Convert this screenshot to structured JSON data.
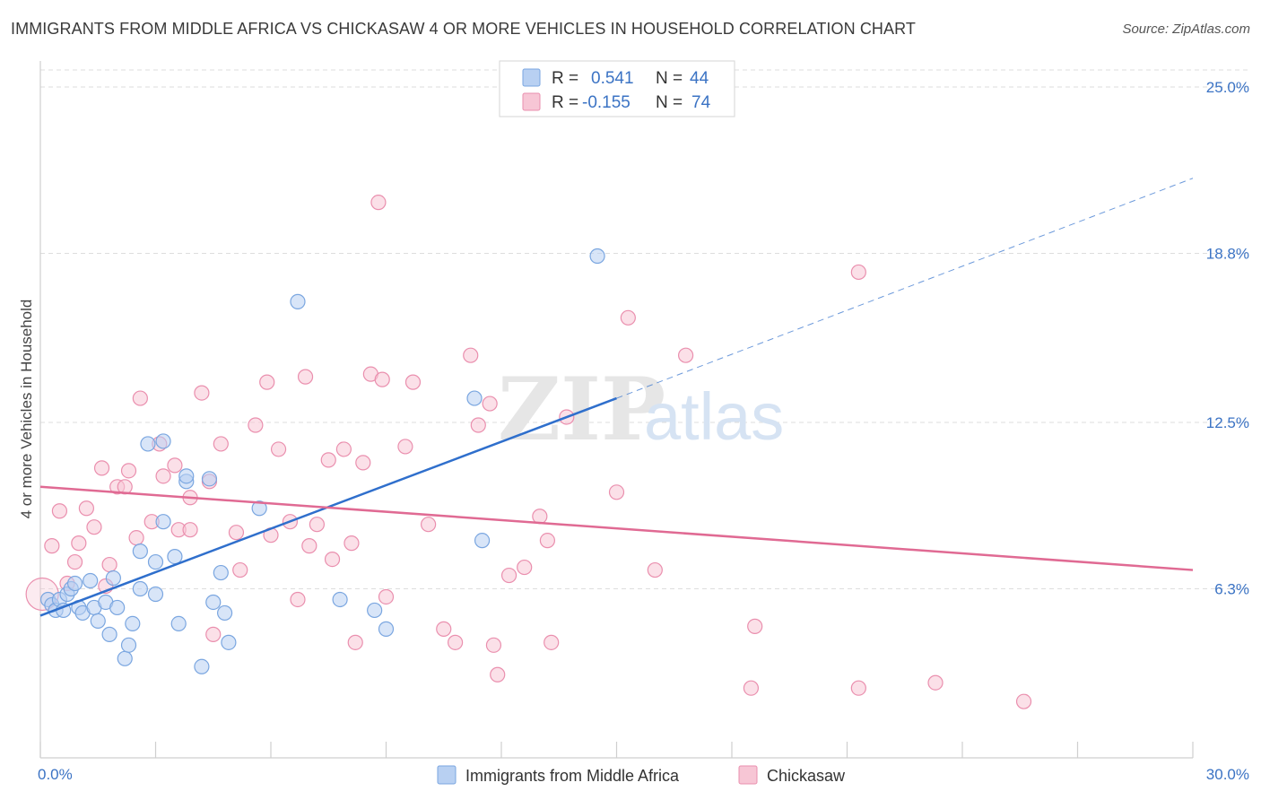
{
  "title": "IMMIGRANTS FROM MIDDLE AFRICA VS CHICKASAW 4 OR MORE VEHICLES IN HOUSEHOLD CORRELATION CHART",
  "source": "Source: ZipAtlas.com",
  "watermark": {
    "zip": "ZIP",
    "atlas": "atlas"
  },
  "colors": {
    "blue_fill": "#b8d0f2",
    "blue_stroke": "#7aa6e0",
    "blue_line": "#2f6fcc",
    "pink_fill": "#f7c6d5",
    "pink_stroke": "#ea8fae",
    "pink_line": "#e06a93",
    "grid": "#dddddd",
    "tick_text": "#3b73c4"
  },
  "legend": {
    "rows": [
      {
        "r_label": "R =",
        "r_value": "0.541",
        "n_label": "N =",
        "n_value": "44",
        "series": "blue"
      },
      {
        "r_label": "R =",
        "r_value": "-0.155",
        "n_label": "N =",
        "n_value": "74",
        "series": "pink"
      }
    ]
  },
  "bottom_legend": [
    {
      "label": "Immigrants from Middle Africa",
      "series": "blue"
    },
    {
      "label": "Chickasaw",
      "series": "pink"
    }
  ],
  "chart_data": {
    "type": "scatter",
    "title": "IMMIGRANTS FROM MIDDLE AFRICA VS CHICKASAW 4 OR MORE VEHICLES IN HOUSEHOLD CORRELATION CHART",
    "xlabel": "",
    "ylabel": "4 or more Vehicles in Household",
    "xlim": [
      0,
      30
    ],
    "ylim": [
      0,
      25
    ],
    "x_tick_labels": [
      {
        "value": 0,
        "label": "0.0%"
      },
      {
        "value": 30,
        "label": "30.0%"
      }
    ],
    "y_tick_labels": [
      {
        "value": 6.3,
        "label": "6.3%"
      },
      {
        "value": 12.5,
        "label": "12.5%"
      },
      {
        "value": 18.8,
        "label": "18.8%"
      },
      {
        "value": 25.0,
        "label": "25.0%"
      }
    ],
    "grid": "horizontal dashed",
    "legend_position": "top-center",
    "series": [
      {
        "name": "Immigrants from Middle Africa",
        "color": "blue",
        "trend": {
          "x": [
            0,
            15
          ],
          "y": [
            5.3,
            13.4
          ],
          "extension": {
            "x": [
              15,
              30
            ],
            "y": [
              13.4,
              21.6
            ]
          }
        },
        "points": [
          {
            "x": 0.2,
            "y": 5.9
          },
          {
            "x": 0.3,
            "y": 5.7
          },
          {
            "x": 0.4,
            "y": 5.5
          },
          {
            "x": 0.5,
            "y": 5.9
          },
          {
            "x": 0.6,
            "y": 5.5
          },
          {
            "x": 0.7,
            "y": 6.1
          },
          {
            "x": 0.8,
            "y": 6.3
          },
          {
            "x": 0.9,
            "y": 6.5
          },
          {
            "x": 1.0,
            "y": 5.6
          },
          {
            "x": 1.1,
            "y": 5.4
          },
          {
            "x": 1.3,
            "y": 6.6
          },
          {
            "x": 1.4,
            "y": 5.6
          },
          {
            "x": 1.5,
            "y": 5.1
          },
          {
            "x": 1.7,
            "y": 5.8
          },
          {
            "x": 1.8,
            "y": 4.6
          },
          {
            "x": 1.9,
            "y": 6.7
          },
          {
            "x": 2.0,
            "y": 5.6
          },
          {
            "x": 2.2,
            "y": 3.7
          },
          {
            "x": 2.3,
            "y": 4.2
          },
          {
            "x": 2.4,
            "y": 5.0
          },
          {
            "x": 2.6,
            "y": 6.3
          },
          {
            "x": 2.6,
            "y": 7.7
          },
          {
            "x": 2.8,
            "y": 11.7
          },
          {
            "x": 3.0,
            "y": 7.3
          },
          {
            "x": 3.0,
            "y": 6.1
          },
          {
            "x": 3.2,
            "y": 8.8
          },
          {
            "x": 3.2,
            "y": 11.8
          },
          {
            "x": 3.5,
            "y": 7.5
          },
          {
            "x": 3.6,
            "y": 5.0
          },
          {
            "x": 3.8,
            "y": 10.3
          },
          {
            "x": 3.8,
            "y": 10.5
          },
          {
            "x": 4.4,
            "y": 10.4
          },
          {
            "x": 4.2,
            "y": 3.4
          },
          {
            "x": 4.5,
            "y": 5.8
          },
          {
            "x": 4.7,
            "y": 6.9
          },
          {
            "x": 4.8,
            "y": 5.4
          },
          {
            "x": 4.9,
            "y": 4.3
          },
          {
            "x": 5.7,
            "y": 9.3
          },
          {
            "x": 6.7,
            "y": 17.0
          },
          {
            "x": 7.8,
            "y": 5.9
          },
          {
            "x": 8.7,
            "y": 5.5
          },
          {
            "x": 9.0,
            "y": 4.8
          },
          {
            "x": 11.3,
            "y": 13.4
          },
          {
            "x": 11.5,
            "y": 8.1
          },
          {
            "x": 14.5,
            "y": 18.7
          }
        ]
      },
      {
        "name": "Chickasaw",
        "color": "pink",
        "trend": {
          "x": [
            0,
            30
          ],
          "y": [
            10.1,
            7.0
          ]
        },
        "points": [
          {
            "x": 0.05,
            "y": 6.1,
            "big": true
          },
          {
            "x": 0.3,
            "y": 7.9
          },
          {
            "x": 0.5,
            "y": 9.2
          },
          {
            "x": 0.7,
            "y": 6.5
          },
          {
            "x": 0.9,
            "y": 7.3
          },
          {
            "x": 1.0,
            "y": 8.0
          },
          {
            "x": 1.2,
            "y": 9.3
          },
          {
            "x": 1.4,
            "y": 8.6
          },
          {
            "x": 1.6,
            "y": 10.8
          },
          {
            "x": 1.7,
            "y": 6.4
          },
          {
            "x": 1.8,
            "y": 7.2
          },
          {
            "x": 2.0,
            "y": 10.1
          },
          {
            "x": 2.2,
            "y": 10.1
          },
          {
            "x": 2.3,
            "y": 10.7
          },
          {
            "x": 2.5,
            "y": 8.2
          },
          {
            "x": 2.6,
            "y": 13.4
          },
          {
            "x": 2.9,
            "y": 8.8
          },
          {
            "x": 3.1,
            "y": 11.7
          },
          {
            "x": 3.2,
            "y": 10.5
          },
          {
            "x": 3.5,
            "y": 10.9
          },
          {
            "x": 3.6,
            "y": 8.5
          },
          {
            "x": 3.9,
            "y": 8.5
          },
          {
            "x": 3.9,
            "y": 9.7
          },
          {
            "x": 4.2,
            "y": 13.6
          },
          {
            "x": 4.4,
            "y": 10.3
          },
          {
            "x": 4.5,
            "y": 4.6
          },
          {
            "x": 4.7,
            "y": 11.7
          },
          {
            "x": 5.1,
            "y": 8.4
          },
          {
            "x": 5.2,
            "y": 7.0
          },
          {
            "x": 5.6,
            "y": 12.4
          },
          {
            "x": 5.9,
            "y": 14.0
          },
          {
            "x": 6.0,
            "y": 8.3
          },
          {
            "x": 6.2,
            "y": 11.5
          },
          {
            "x": 6.5,
            "y": 8.8
          },
          {
            "x": 6.7,
            "y": 5.9
          },
          {
            "x": 6.9,
            "y": 14.2
          },
          {
            "x": 7.0,
            "y": 7.9
          },
          {
            "x": 7.2,
            "y": 8.7
          },
          {
            "x": 7.5,
            "y": 11.1
          },
          {
            "x": 7.6,
            "y": 7.4
          },
          {
            "x": 7.9,
            "y": 11.5
          },
          {
            "x": 8.1,
            "y": 8.0
          },
          {
            "x": 8.2,
            "y": 4.3
          },
          {
            "x": 8.4,
            "y": 11.0
          },
          {
            "x": 8.6,
            "y": 14.3
          },
          {
            "x": 8.8,
            "y": 20.7
          },
          {
            "x": 8.9,
            "y": 14.1
          },
          {
            "x": 9.0,
            "y": 6.0
          },
          {
            "x": 9.5,
            "y": 11.6
          },
          {
            "x": 9.7,
            "y": 14.0
          },
          {
            "x": 10.1,
            "y": 8.7
          },
          {
            "x": 10.5,
            "y": 4.8
          },
          {
            "x": 10.8,
            "y": 4.3
          },
          {
            "x": 11.2,
            "y": 15.0
          },
          {
            "x": 11.4,
            "y": 12.4
          },
          {
            "x": 11.7,
            "y": 13.2
          },
          {
            "x": 11.8,
            "y": 4.2
          },
          {
            "x": 11.9,
            "y": 3.1
          },
          {
            "x": 12.2,
            "y": 6.8
          },
          {
            "x": 12.6,
            "y": 7.1
          },
          {
            "x": 13.0,
            "y": 9.0
          },
          {
            "x": 13.2,
            "y": 8.1
          },
          {
            "x": 13.3,
            "y": 4.3
          },
          {
            "x": 15.0,
            "y": 9.9
          },
          {
            "x": 15.3,
            "y": 16.4
          },
          {
            "x": 16.0,
            "y": 7.0
          },
          {
            "x": 16.8,
            "y": 15.0
          },
          {
            "x": 18.5,
            "y": 2.6
          },
          {
            "x": 18.6,
            "y": 4.9
          },
          {
            "x": 21.3,
            "y": 18.1
          },
          {
            "x": 21.3,
            "y": 2.6
          },
          {
            "x": 23.3,
            "y": 2.8
          },
          {
            "x": 25.6,
            "y": 2.1
          },
          {
            "x": 13.7,
            "y": 12.7
          }
        ]
      }
    ]
  }
}
